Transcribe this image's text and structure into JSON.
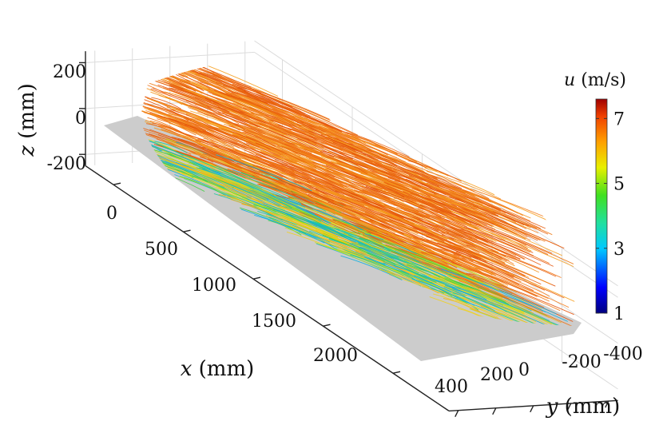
{
  "chart_data": {
    "type": "3d-streamlines",
    "title": "",
    "x_axis": {
      "var": "x",
      "unit": "(mm)",
      "range": [
        -200,
        2400
      ],
      "ticks": [
        0,
        500,
        1000,
        1500,
        2000
      ],
      "tick_labels": [
        "0",
        "500",
        "1000",
        "1500",
        "2000"
      ]
    },
    "y_axis": {
      "var": "y",
      "unit": "(mm)",
      "range": [
        -450,
        450
      ],
      "ticks": [
        400,
        200,
        0,
        -200,
        -400
      ],
      "tick_labels": [
        "400",
        "200",
        "0",
        "-200",
        "-400"
      ]
    },
    "z_axis": {
      "var": "z",
      "unit": "(mm)",
      "range": [
        -250,
        250
      ],
      "ticks": [
        200,
        0,
        -200
      ],
      "tick_labels": [
        "200",
        "0",
        "-200"
      ]
    },
    "colorbar": {
      "var": "u",
      "unit": "(m/s)",
      "range": [
        1,
        7.6
      ],
      "ticks": [
        7,
        5,
        3,
        1
      ],
      "tick_labels": [
        "7",
        "5",
        "3",
        "1"
      ],
      "colormap": "jet"
    },
    "surface_color": "#cccccc",
    "grid": true
  }
}
